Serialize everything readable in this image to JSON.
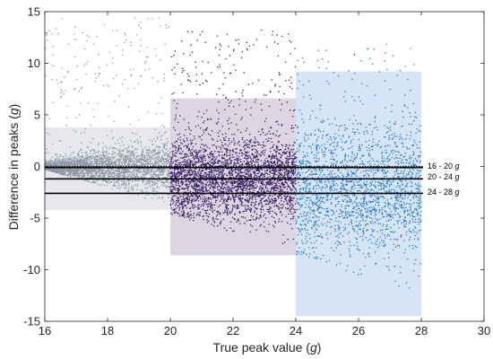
{
  "chart_data": {
    "type": "scatter",
    "xlabel": "True peak value",
    "xlabel_unit": "g",
    "ylabel": "Difference in peaks",
    "ylabel_unit": "g",
    "xlim": [
      16,
      30
    ],
    "ylim": [
      -15,
      15
    ],
    "xticks": [
      16,
      18,
      20,
      22,
      24,
      26,
      28,
      30
    ],
    "yticks": [
      -15,
      -10,
      -5,
      0,
      5,
      10,
      15
    ],
    "grid": false,
    "series": [
      {
        "name": "16 - 20",
        "unit": "g",
        "color": "#8e98a6",
        "band_color": "#e6e8ec",
        "x_range": [
          16,
          20
        ],
        "band_y_range": [
          -4.2,
          3.8
        ],
        "mean_difference": -0.1,
        "label_text": "16 - 20 g"
      },
      {
        "name": "20 - 24",
        "unit": "g",
        "color": "#3b1e66",
        "band_color": "#dcd6e2",
        "x_range": [
          20,
          24
        ],
        "band_y_range": [
          -8.6,
          6.6
        ],
        "mean_difference": -1.2,
        "label_text": "20 - 24 g"
      },
      {
        "name": "24 - 28",
        "unit": "g",
        "color": "#2a78c8",
        "band_color": "#d5e5f6",
        "x_range": [
          24,
          28
        ],
        "band_y_range": [
          -14.5,
          9.2
        ],
        "mean_difference": -2.6,
        "label_text": "24 - 28 g"
      }
    ],
    "reference_lines": [
      {
        "y": 0,
        "style": "dotted"
      },
      {
        "y": -0.1,
        "style": "solid"
      },
      {
        "y": -1.2,
        "style": "solid"
      },
      {
        "y": -2.6,
        "style": "solid"
      }
    ]
  }
}
